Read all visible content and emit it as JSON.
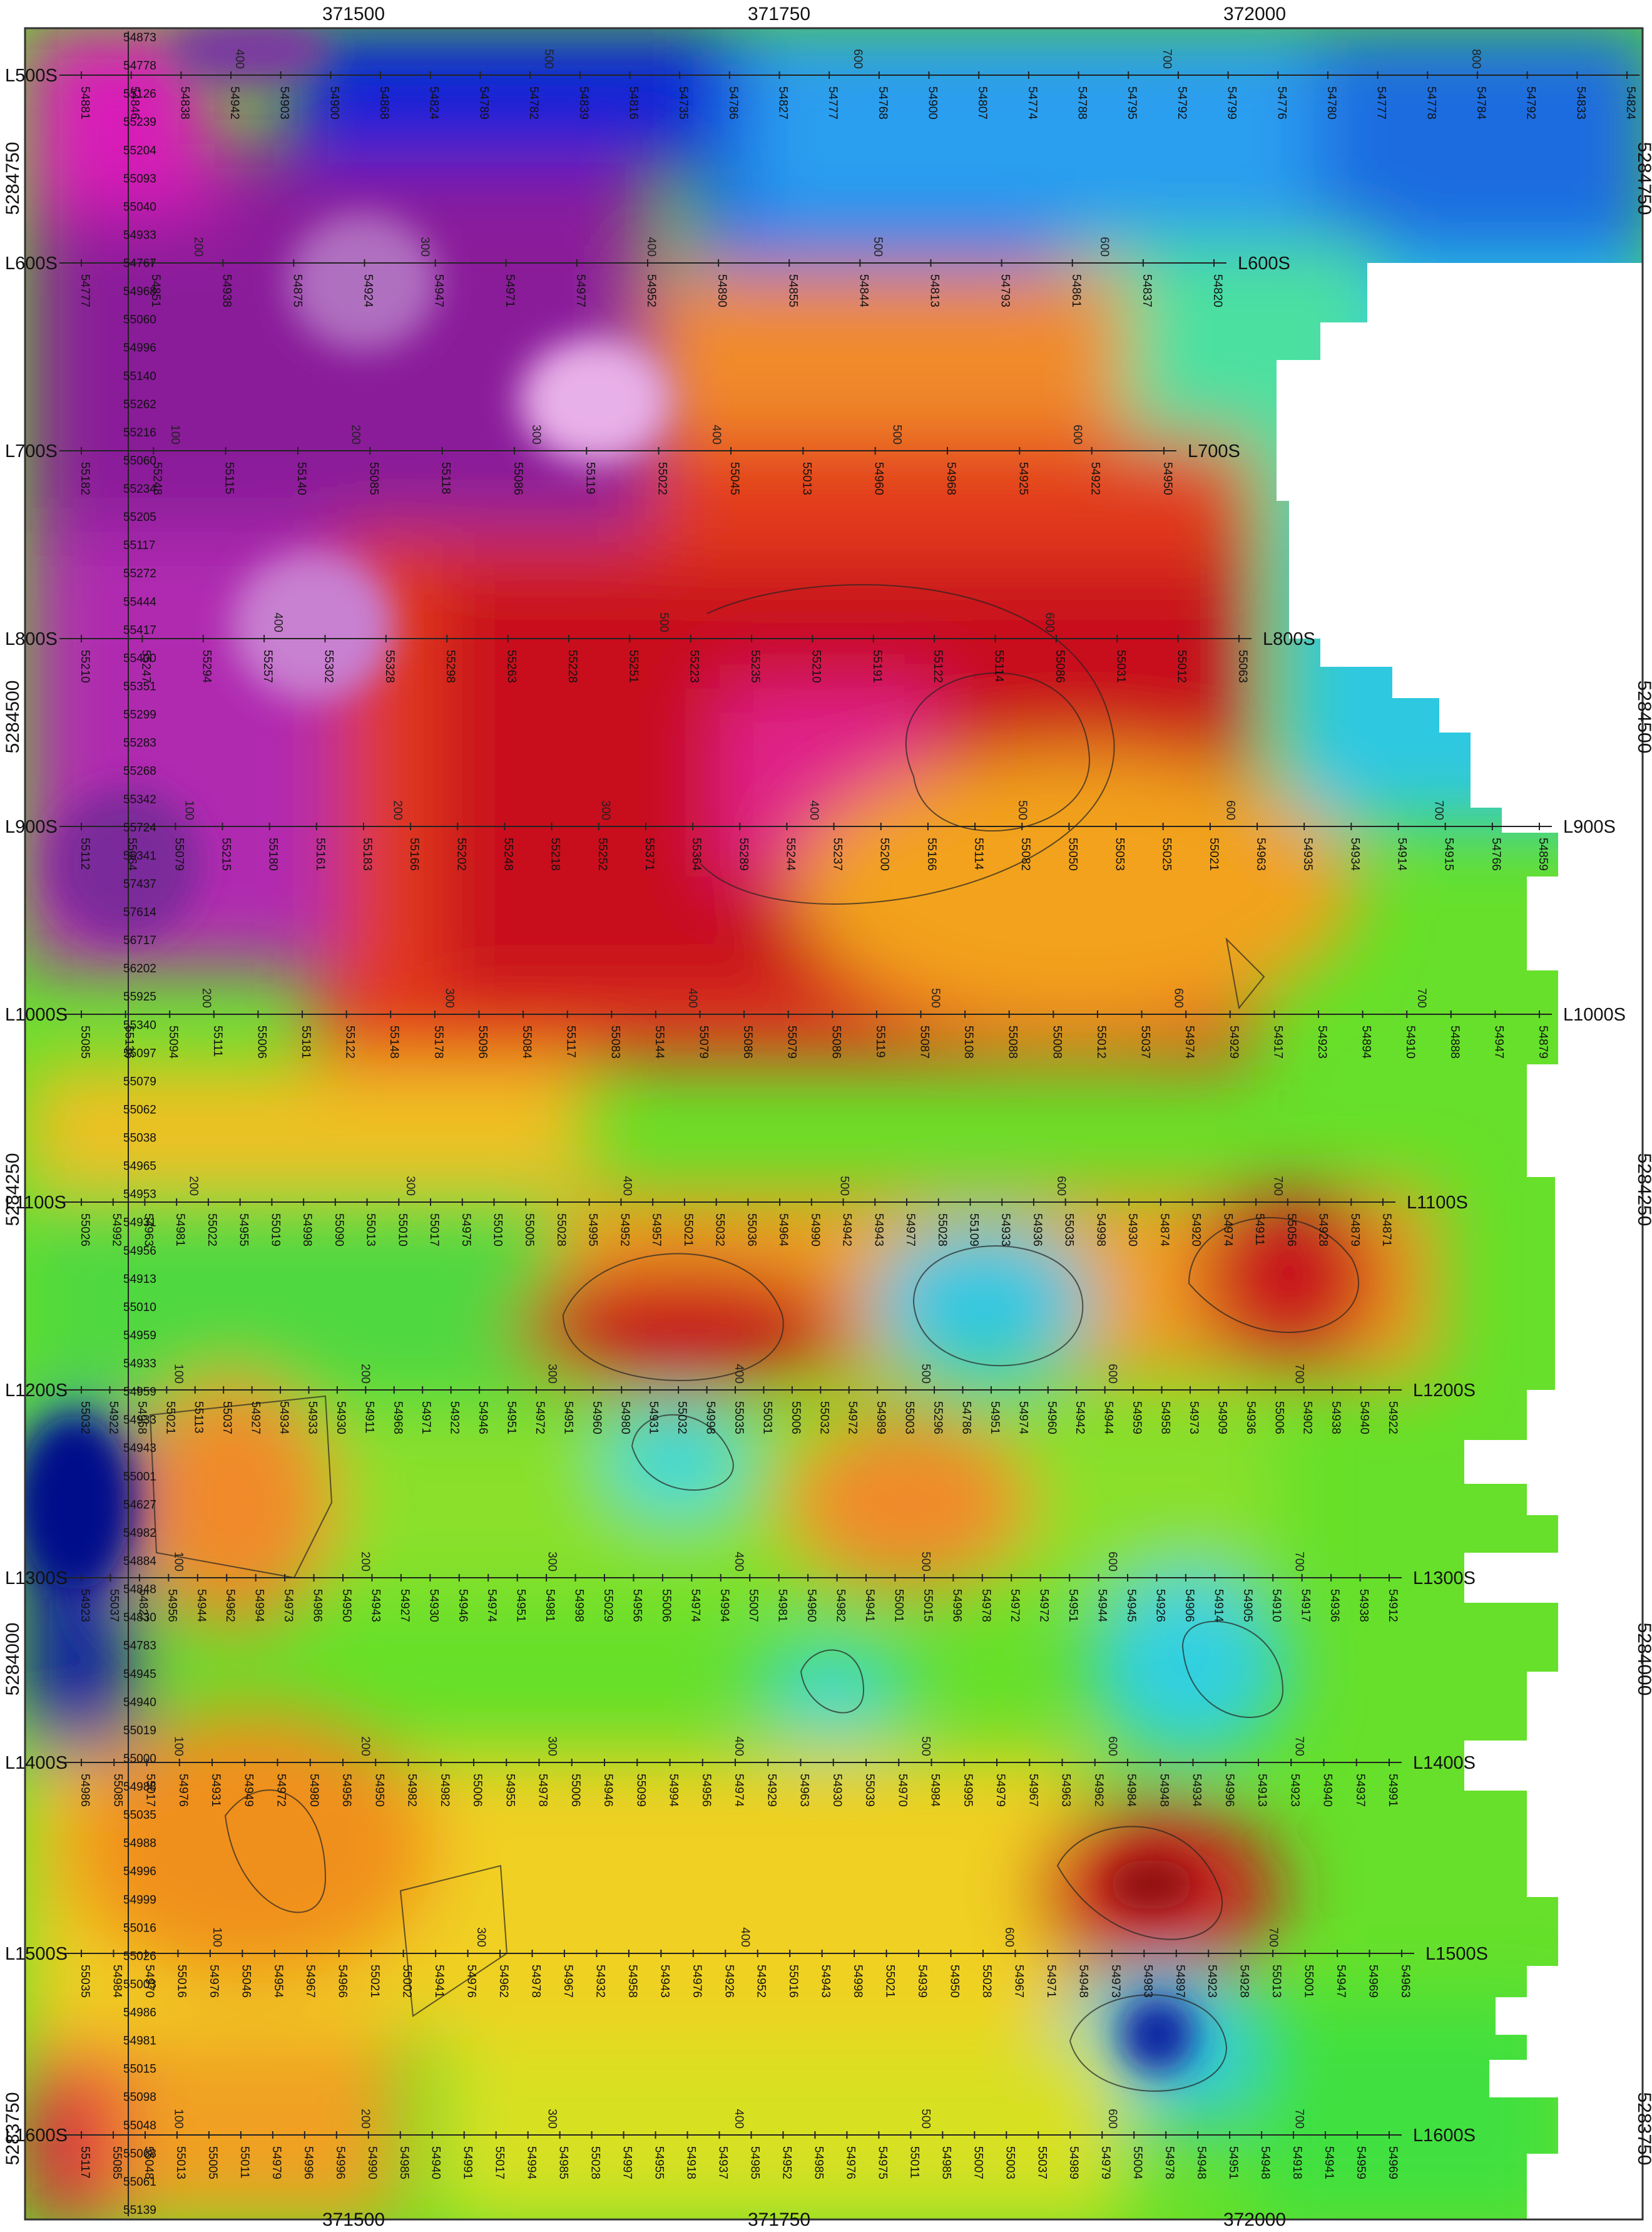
{
  "map": {
    "x_ticks": [
      "371500",
      "371750",
      "372000"
    ],
    "y_ticks": [
      "5284750",
      "5284500",
      "5284250",
      "5284000",
      "5283750"
    ],
    "lines": [
      {
        "label": "L500S",
        "stations": [
          "400",
          "500",
          "600",
          "700",
          "800"
        ],
        "values": [
          "54881",
          "54846",
          "54838",
          "54942",
          "54903",
          "54900",
          "54868",
          "54824",
          "54789",
          "54782",
          "54839",
          "54816",
          "54735",
          "54786",
          "54827",
          "54777",
          "54768",
          "54900",
          "54807",
          "54774",
          "54788",
          "54795",
          "54792",
          "54799",
          "54776",
          "54780",
          "54777",
          "54778",
          "54784",
          "54792",
          "54833",
          "54824"
        ]
      },
      {
        "label": "L600S",
        "stations": [
          "200",
          "300",
          "400",
          "500",
          "600"
        ],
        "values": [
          "54777",
          "54851",
          "54938",
          "54875",
          "54924",
          "54947",
          "54971",
          "54977",
          "54952",
          "54890",
          "54855",
          "54844",
          "54813",
          "54793",
          "54861",
          "54837",
          "54820"
        ]
      },
      {
        "label": "L700S",
        "stations": [
          "100",
          "200",
          "300",
          "400",
          "500",
          "600"
        ],
        "values": [
          "55182",
          "55248",
          "55115",
          "55140",
          "55085",
          "55118",
          "55086",
          "55119",
          "55022",
          "55045",
          "55013",
          "54960",
          "54968",
          "54925",
          "54922",
          "54950"
        ]
      },
      {
        "label": "L800S",
        "stations": [
          "400",
          "500",
          "600"
        ],
        "values": [
          "55210",
          "55247",
          "55294",
          "55257",
          "55302",
          "55328",
          "55298",
          "55263",
          "55228",
          "55251",
          "55223",
          "55235",
          "55210",
          "55191",
          "55122",
          "55114",
          "55086",
          "55031",
          "55012",
          "55063"
        ]
      },
      {
        "label": "L900S",
        "stations": [
          "100",
          "200",
          "300",
          "400",
          "500",
          "600",
          "700"
        ],
        "values": [
          "55112",
          "55064",
          "55079",
          "55215",
          "55180",
          "55161",
          "55183",
          "55166",
          "55202",
          "55248",
          "55218",
          "55252",
          "55371",
          "55364",
          "55289",
          "55244",
          "55237",
          "55200",
          "55166",
          "55114",
          "55082",
          "55050",
          "55053",
          "55025",
          "55021",
          "54963",
          "54935",
          "54934",
          "54914",
          "54915",
          "54766",
          "54859"
        ]
      },
      {
        "label": "L1000S",
        "stations": [
          "200",
          "300",
          "400",
          "500",
          "600",
          "700"
        ],
        "values": [
          "55085",
          "55136",
          "55094",
          "55111",
          "55006",
          "55181",
          "55122",
          "55148",
          "55178",
          "55096",
          "55084",
          "55117",
          "55083",
          "55144",
          "55079",
          "55086",
          "55079",
          "55086",
          "55119",
          "55087",
          "55108",
          "55088",
          "55008",
          "55012",
          "55037",
          "54974",
          "54929",
          "54917",
          "54923",
          "54894",
          "54910",
          "54888",
          "54947",
          "54879"
        ]
      },
      {
        "label": "L1100S",
        "stations": [
          "200",
          "300",
          "400",
          "500",
          "600",
          "700"
        ],
        "values": [
          "55026",
          "54992",
          "54963",
          "54981",
          "55022",
          "54955",
          "55019",
          "54998",
          "55090",
          "55013",
          "55010",
          "55017",
          "54975",
          "55010",
          "55005",
          "55028",
          "54995",
          "54952",
          "54957",
          "55021",
          "55032",
          "55036",
          "54964",
          "54990",
          "54942",
          "54943",
          "54977",
          "55028",
          "55109",
          "54933",
          "54936",
          "55035",
          "54998",
          "54930",
          "54874",
          "54920",
          "54974",
          "54911",
          "55056",
          "54928",
          "54879",
          "54871"
        ]
      },
      {
        "label": "L1200S",
        "stations": [
          "100",
          "200",
          "300",
          "400",
          "500",
          "600",
          "700"
        ],
        "values": [
          "55032",
          "54922",
          "54958",
          "55021",
          "55113",
          "55037",
          "54927",
          "54934",
          "54933",
          "54930",
          "54911",
          "54968",
          "54971",
          "54922",
          "54946",
          "54951",
          "54972",
          "54951",
          "54960",
          "54980",
          "54931",
          "55032",
          "54998",
          "55035",
          "55031",
          "55006",
          "55032",
          "54972",
          "54989",
          "55003",
          "55296",
          "54786",
          "54951",
          "54974",
          "54960",
          "54942",
          "54944",
          "54959",
          "54958",
          "54973",
          "54909",
          "54936",
          "55006",
          "54902",
          "54938",
          "54940",
          "54922"
        ]
      },
      {
        "label": "L1300S",
        "stations": [
          "100",
          "200",
          "300",
          "400",
          "500",
          "600",
          "700"
        ],
        "values": [
          "54923",
          "55037",
          "54827",
          "54956",
          "54944",
          "54962",
          "54994",
          "54973",
          "54986",
          "54950",
          "54943",
          "54927",
          "54930",
          "54946",
          "54974",
          "54951",
          "54981",
          "54998",
          "55029",
          "54956",
          "55006",
          "54974",
          "54994",
          "55007",
          "54981",
          "54960",
          "54982",
          "54941",
          "55001",
          "55015",
          "54996",
          "54978",
          "54972",
          "54972",
          "54951",
          "54944",
          "54945",
          "54926",
          "54906",
          "54914",
          "54905",
          "54910",
          "54917",
          "54936",
          "54938",
          "54912"
        ]
      },
      {
        "label": "L1400S",
        "stations": [
          "100",
          "200",
          "300",
          "400",
          "500",
          "600",
          "700"
        ],
        "values": [
          "54986",
          "55085",
          "55017",
          "54976",
          "54931",
          "54949",
          "54972",
          "54980",
          "54956",
          "54950",
          "54982",
          "54982",
          "55006",
          "54955",
          "54978",
          "55006",
          "54946",
          "55099",
          "54994",
          "54956",
          "54974",
          "54929",
          "54963",
          "54930",
          "55039",
          "54970",
          "54984",
          "54995",
          "54979",
          "54967",
          "54963",
          "54962",
          "54984",
          "54948",
          "54934",
          "54996",
          "54913",
          "54923",
          "54940",
          "54937",
          "54991"
        ]
      },
      {
        "label": "L1500S",
        "stations": [
          "100",
          "300",
          "400",
          "600",
          "700"
        ],
        "values": [
          "55035",
          "54984",
          "54970",
          "55016",
          "54976",
          "55046",
          "54954",
          "54967",
          "54966",
          "55021",
          "55002",
          "54941",
          "54976",
          "54962",
          "54978",
          "54967",
          "54932",
          "54958",
          "54943",
          "54976",
          "54926",
          "54952",
          "55016",
          "54943",
          "54998",
          "55021",
          "54939",
          "54950",
          "55028",
          "54967",
          "54971",
          "54948",
          "54973",
          "54983",
          "54897",
          "54923",
          "54928",
          "55013",
          "55001",
          "54947",
          "54969",
          "54963"
        ]
      },
      {
        "label": "L1600S",
        "stations": [
          "100",
          "200",
          "300",
          "400",
          "500",
          "600",
          "700"
        ],
        "values": [
          "55117",
          "55085",
          "55048",
          "55013",
          "55005",
          "55011",
          "54979",
          "54996",
          "54996",
          "54990",
          "54985",
          "54940",
          "54991",
          "55017",
          "54994",
          "54985",
          "55028",
          "54997",
          "54955",
          "54918",
          "54937",
          "54985",
          "54952",
          "54985",
          "54976",
          "54975",
          "55011",
          "54985",
          "55007",
          "55003",
          "55037",
          "54989",
          "54979",
          "55004",
          "54978",
          "54948",
          "54951",
          "54948",
          "54918",
          "54941",
          "54959",
          "54969"
        ]
      }
    ],
    "column_values": [
      "54873",
      "54778",
      "55126",
      "55239",
      "55204",
      "55093",
      "55040",
      "54933",
      "54767",
      "54968",
      "55060",
      "54996",
      "55140",
      "55262",
      "55216",
      "55060",
      "55234",
      "55205",
      "55117",
      "55272",
      "55444",
      "55417",
      "55400",
      "55351",
      "55299",
      "55283",
      "55268",
      "55342",
      "55724",
      "56341",
      "57437",
      "57614",
      "56717",
      "56202",
      "55925",
      "55340",
      "55097",
      "55079",
      "55062",
      "55038",
      "54965",
      "54953",
      "54931",
      "54956",
      "54913",
      "55010",
      "54959",
      "54933",
      "54959",
      "54933",
      "54943",
      "55001",
      "54627",
      "54982",
      "54884",
      "54848",
      "54830",
      "54783",
      "54945",
      "54940",
      "55019",
      "55000",
      "54988",
      "55035",
      "54988",
      "54996",
      "54999",
      "55016",
      "55026",
      "55003",
      "54986",
      "54981",
      "55015",
      "55098",
      "55048",
      "55068",
      "55061",
      "55139"
    ]
  }
}
